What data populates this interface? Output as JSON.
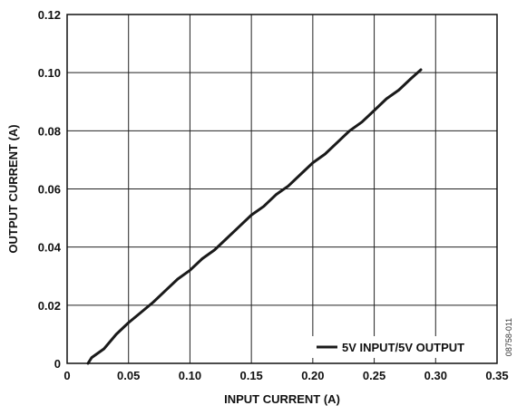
{
  "chart_data": {
    "type": "line",
    "xlabel": "INPUT CURRENT (A)",
    "ylabel": "OUTPUT CURRENT (A)",
    "xlim": [
      0,
      0.35
    ],
    "ylim": [
      0,
      0.12
    ],
    "x_ticks": [
      "0",
      "0.05",
      "0.10",
      "0.15",
      "0.20",
      "0.25",
      "0.30",
      "0.35"
    ],
    "y_ticks": [
      "0",
      "0.02",
      "0.04",
      "0.06",
      "0.08",
      "0.10",
      "0.12"
    ],
    "grid": true,
    "legend_position": "bottom-right",
    "series": [
      {
        "name": "5V INPUT/5V OUTPUT",
        "color": "#1a1a1a",
        "x": [
          0.017,
          0.02,
          0.03,
          0.04,
          0.05,
          0.06,
          0.07,
          0.08,
          0.09,
          0.1,
          0.11,
          0.12,
          0.13,
          0.14,
          0.15,
          0.16,
          0.17,
          0.18,
          0.19,
          0.2,
          0.21,
          0.22,
          0.23,
          0.24,
          0.25,
          0.26,
          0.27,
          0.28,
          0.288
        ],
        "y": [
          0.0,
          0.002,
          0.005,
          0.01,
          0.014,
          0.0175,
          0.021,
          0.025,
          0.029,
          0.032,
          0.036,
          0.039,
          0.043,
          0.047,
          0.051,
          0.054,
          0.058,
          0.061,
          0.065,
          0.069,
          0.072,
          0.076,
          0.08,
          0.083,
          0.087,
          0.091,
          0.094,
          0.098,
          0.101
        ]
      }
    ]
  },
  "figure_code": "08758-011"
}
